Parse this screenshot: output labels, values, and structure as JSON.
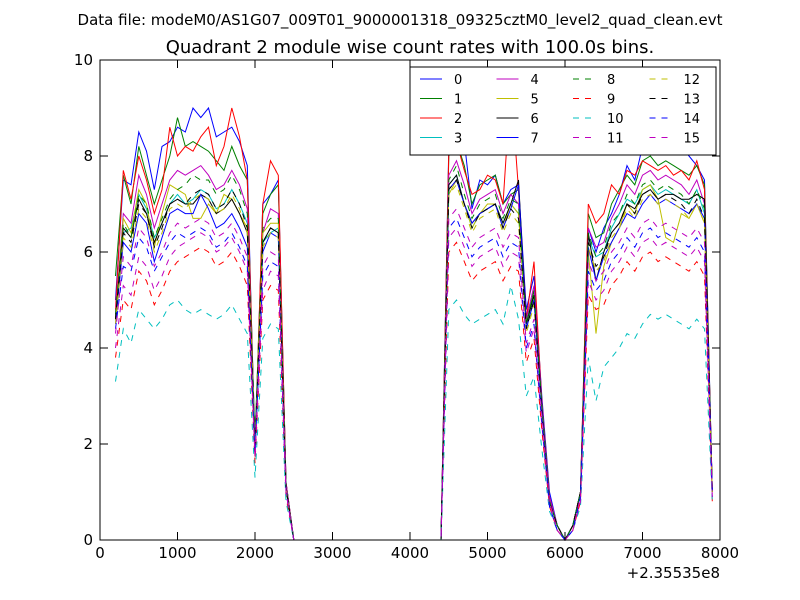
{
  "chart_data": {
    "type": "line",
    "suptitle": "Data file: modeM0/AS1G07_009T01_9000001318_09325cztM0_level2_quad_clean.evt",
    "title": "Quadrant 2 module wise count rates with 100.0s bins.",
    "xlabel": "",
    "ylabel": "",
    "x_offset_label": "+2.35535e8",
    "xlim": [
      0,
      8000
    ],
    "ylim": [
      0,
      10
    ],
    "xticks": [
      0,
      1000,
      2000,
      3000,
      4000,
      5000,
      6000,
      7000,
      8000
    ],
    "yticks": [
      0,
      2,
      4,
      6,
      8,
      10
    ],
    "grid": false,
    "legend_position": "top-right",
    "legend_columns": 4,
    "x": [
      200,
      300,
      400,
      500,
      600,
      700,
      800,
      900,
      1000,
      1100,
      1200,
      1300,
      1400,
      1500,
      1600,
      1700,
      1800,
      1900,
      2000,
      2100,
      2200,
      2300,
      2400,
      2500,
      2600,
      4400,
      4500,
      4600,
      4700,
      4800,
      4900,
      5000,
      5100,
      5200,
      5300,
      5400,
      5500,
      5600,
      5700,
      5800,
      5900,
      6000,
      6100,
      6200,
      6300,
      6400,
      6500,
      6600,
      6700,
      6800,
      6900,
      7000,
      7100,
      7200,
      7300,
      7400,
      7500,
      7600,
      7700,
      7800,
      7900
    ],
    "series": [
      {
        "name": "0",
        "color": "#0000ff",
        "dash": "solid",
        "values": [
          5.0,
          7.5,
          7.4,
          8.5,
          8.1,
          7.3,
          8.2,
          8.3,
          8.6,
          8.5,
          9.0,
          8.8,
          9.0,
          8.4,
          8.5,
          8.6,
          8.3,
          7.8,
          1.8,
          7.0,
          7.2,
          7.5,
          1.2,
          0,
          0,
          0,
          8.2,
          8.6,
          8.3,
          6.9,
          7.5,
          7.4,
          7.6,
          7.0,
          7.3,
          7.4,
          4.8,
          5.5,
          3.0,
          1.0,
          0.3,
          0,
          0.3,
          1.0,
          6.5,
          6.0,
          6.5,
          6.8,
          7.2,
          7.8,
          7.5,
          8.2,
          8.7,
          8.5,
          8.4,
          8.5,
          8.2,
          8.0,
          7.8,
          7.5,
          1.0
        ]
      },
      {
        "name": "1",
        "color": "#008000",
        "dash": "solid",
        "values": [
          5.5,
          7.6,
          7.0,
          8.2,
          7.6,
          7.0,
          7.5,
          8.0,
          8.8,
          8.2,
          8.3,
          8.2,
          8.1,
          7.9,
          7.7,
          8.2,
          7.8,
          7.5,
          2.0,
          6.8,
          7.2,
          7.4,
          1.2,
          0,
          0,
          0,
          8.0,
          8.3,
          7.8,
          7.0,
          7.4,
          7.5,
          7.6,
          7.0,
          7.2,
          7.3,
          4.5,
          5.2,
          2.9,
          0.9,
          0.3,
          0,
          0.3,
          1.0,
          6.8,
          6.3,
          6.4,
          7.0,
          7.3,
          7.6,
          7.4,
          7.9,
          8.0,
          7.8,
          7.9,
          7.8,
          7.7,
          7.6,
          7.8,
          7.4,
          1.0
        ]
      },
      {
        "name": "2",
        "color": "#ff0000",
        "dash": "solid",
        "values": [
          4.8,
          7.7,
          7.1,
          8.0,
          7.5,
          6.8,
          7.3,
          8.6,
          8.0,
          8.2,
          8.1,
          8.4,
          8.6,
          7.8,
          8.2,
          9.0,
          8.4,
          7.5,
          1.9,
          7.0,
          7.9,
          7.6,
          1.2,
          0,
          0,
          0,
          8.1,
          8.3,
          7.7,
          7.2,
          7.3,
          7.6,
          7.5,
          7.0,
          9.5,
          7.3,
          4.6,
          5.8,
          2.9,
          0.9,
          0.3,
          0,
          0.3,
          1.0,
          7.0,
          6.6,
          6.8,
          7.4,
          7.2,
          7.7,
          7.6,
          7.9,
          7.8,
          7.7,
          7.8,
          7.6,
          7.7,
          7.5,
          7.9,
          7.3,
          1.0
        ]
      },
      {
        "name": "3",
        "color": "#00bfbf",
        "dash": "solid",
        "values": [
          4.6,
          6.4,
          6.5,
          7.2,
          6.9,
          6.3,
          6.6,
          7.0,
          7.2,
          7.0,
          7.1,
          7.3,
          7.2,
          6.9,
          7.0,
          7.3,
          7.0,
          6.6,
          2.2,
          6.2,
          6.4,
          6.5,
          1.1,
          0,
          0,
          0,
          7.4,
          7.6,
          7.0,
          6.5,
          6.8,
          6.9,
          7.0,
          6.6,
          7.0,
          6.8,
          4.4,
          5.0,
          2.8,
          0.8,
          0.3,
          0,
          0.3,
          1.0,
          6.3,
          5.9,
          6.0,
          6.5,
          6.8,
          7.1,
          7.0,
          7.3,
          7.4,
          7.2,
          7.3,
          7.2,
          7.1,
          7.0,
          7.3,
          6.8,
          1.0
        ]
      },
      {
        "name": "4",
        "color": "#bf00bf",
        "dash": "solid",
        "values": [
          4.7,
          6.8,
          6.6,
          7.6,
          7.2,
          6.5,
          7.0,
          7.5,
          7.7,
          7.6,
          7.7,
          7.8,
          7.6,
          7.3,
          7.4,
          7.7,
          7.4,
          6.9,
          2.0,
          6.4,
          6.9,
          6.8,
          1.2,
          0,
          0,
          0,
          7.6,
          7.9,
          7.4,
          6.8,
          7.1,
          7.2,
          7.3,
          6.8,
          7.2,
          7.0,
          4.6,
          5.3,
          2.9,
          0.9,
          0.3,
          0,
          0.3,
          1.0,
          6.5,
          6.1,
          6.2,
          6.7,
          7.0,
          7.4,
          7.2,
          7.6,
          7.7,
          7.5,
          7.6,
          7.5,
          7.4,
          7.2,
          7.5,
          7.0,
          1.0
        ]
      },
      {
        "name": "5",
        "color": "#bfbf00",
        "dash": "solid",
        "values": [
          4.6,
          6.7,
          6.4,
          7.3,
          7.0,
          6.1,
          6.8,
          7.4,
          7.3,
          7.2,
          6.7,
          6.7,
          7.0,
          6.8,
          7.2,
          7.1,
          6.8,
          6.5,
          2.1,
          6.4,
          6.6,
          6.6,
          1.1,
          0,
          0,
          0,
          7.2,
          7.5,
          7.0,
          6.5,
          6.8,
          7.0,
          7.0,
          6.5,
          7.0,
          6.8,
          4.4,
          5.0,
          2.8,
          0.8,
          0.3,
          0,
          0.3,
          1.0,
          6.0,
          4.3,
          5.7,
          6.2,
          6.5,
          7.0,
          6.8,
          7.3,
          7.4,
          7.1,
          6.3,
          6.2,
          6.8,
          6.7,
          7.0,
          6.6,
          1.0
        ]
      },
      {
        "name": "6",
        "color": "#000000",
        "dash": "solid",
        "values": [
          4.6,
          6.5,
          6.3,
          7.1,
          6.8,
          6.2,
          6.6,
          7.0,
          7.1,
          7.0,
          7.0,
          7.2,
          7.1,
          6.8,
          6.9,
          7.1,
          6.8,
          6.4,
          2.0,
          6.2,
          6.5,
          6.4,
          1.1,
          0,
          0,
          0,
          7.4,
          7.6,
          7.0,
          6.6,
          6.8,
          6.9,
          7.0,
          6.6,
          7.0,
          7.5,
          4.5,
          5.1,
          2.8,
          0.8,
          0.3,
          0,
          0.3,
          1.0,
          6.4,
          5.4,
          6.0,
          6.4,
          6.6,
          7.0,
          6.9,
          7.2,
          7.3,
          7.1,
          7.2,
          7.2,
          7.1,
          7.1,
          7.2,
          7.1,
          1.0
        ]
      },
      {
        "name": "7",
        "color": "#0000ff",
        "dash": "solid",
        "values": [
          4.5,
          6.2,
          6.0,
          6.8,
          6.6,
          5.8,
          6.3,
          6.8,
          6.9,
          6.8,
          6.8,
          7.2,
          6.9,
          6.5,
          6.6,
          6.8,
          6.5,
          6.1,
          2.0,
          6.0,
          6.4,
          6.3,
          1.1,
          0,
          0,
          0,
          7.3,
          7.5,
          7.0,
          6.6,
          6.8,
          6.9,
          7.0,
          6.5,
          6.9,
          7.4,
          4.4,
          5.0,
          2.8,
          0.8,
          0.3,
          0,
          0.3,
          1.0,
          6.1,
          5.4,
          5.9,
          6.2,
          6.5,
          6.8,
          6.7,
          7.0,
          7.2,
          7.0,
          7.1,
          7.0,
          6.9,
          6.8,
          7.0,
          6.7,
          1.0
        ]
      },
      {
        "name": "8",
        "color": "#008000",
        "dash": "dashed",
        "values": [
          4.7,
          6.6,
          6.3,
          7.2,
          7.0,
          6.3,
          6.7,
          7.1,
          7.3,
          7.4,
          7.6,
          7.5,
          7.5,
          7.2,
          7.3,
          7.6,
          7.3,
          6.8,
          2.0,
          6.5,
          6.7,
          6.7,
          1.1,
          0,
          0,
          0,
          7.5,
          7.8,
          7.2,
          6.7,
          7.0,
          7.1,
          7.2,
          6.7,
          7.1,
          7.0,
          4.5,
          5.2,
          2.8,
          0.8,
          0.3,
          0,
          0.3,
          1.0,
          6.4,
          5.9,
          6.1,
          6.6,
          6.8,
          7.2,
          7.0,
          7.4,
          7.5,
          7.3,
          7.4,
          7.3,
          7.2,
          7.0,
          7.3,
          6.9,
          1.0
        ]
      },
      {
        "name": "9",
        "color": "#ff0000",
        "dash": "dashed",
        "values": [
          3.8,
          5.0,
          4.8,
          5.6,
          5.4,
          4.9,
          5.2,
          5.6,
          5.8,
          5.9,
          6.0,
          6.1,
          6.0,
          5.7,
          5.8,
          6.0,
          5.7,
          5.3,
          1.6,
          5.0,
          5.3,
          5.2,
          0.9,
          0,
          0,
          0,
          6.0,
          6.2,
          5.8,
          5.4,
          5.6,
          5.7,
          5.8,
          5.4,
          5.7,
          5.6,
          3.7,
          4.2,
          2.3,
          0.7,
          0.2,
          0,
          0.2,
          0.8,
          5.1,
          4.8,
          4.9,
          5.3,
          5.5,
          5.8,
          5.6,
          5.9,
          6.0,
          5.8,
          5.9,
          5.8,
          5.7,
          5.6,
          5.8,
          5.5,
          0.8
        ]
      },
      {
        "name": "10",
        "color": "#00bfbf",
        "dash": "dashed",
        "values": [
          3.3,
          4.4,
          4.1,
          4.8,
          4.6,
          4.4,
          4.6,
          4.9,
          5.0,
          4.8,
          4.7,
          4.8,
          4.7,
          4.6,
          4.7,
          4.9,
          4.6,
          4.3,
          1.3,
          4.2,
          4.5,
          4.4,
          0.8,
          0,
          0,
          0,
          4.8,
          5.0,
          4.7,
          4.5,
          4.6,
          4.7,
          4.8,
          4.5,
          5.3,
          4.6,
          3.0,
          3.4,
          1.9,
          0.6,
          0.2,
          0,
          0.2,
          0.7,
          3.8,
          2.9,
          3.6,
          3.8,
          4.0,
          4.3,
          4.2,
          4.5,
          4.7,
          4.6,
          4.7,
          4.6,
          4.5,
          4.4,
          4.6,
          4.4,
          0.8
        ]
      },
      {
        "name": "11",
        "color": "#bf00bf",
        "dash": "dashed",
        "values": [
          4.0,
          5.3,
          5.1,
          5.9,
          5.7,
          5.2,
          5.5,
          5.9,
          6.1,
          6.2,
          6.3,
          6.4,
          6.3,
          6.0,
          6.1,
          6.3,
          6.0,
          5.6,
          1.7,
          5.2,
          5.6,
          5.5,
          1.0,
          0,
          0,
          0,
          6.3,
          6.5,
          6.1,
          5.7,
          5.9,
          6.0,
          6.1,
          5.7,
          6.0,
          5.9,
          3.9,
          4.4,
          2.4,
          0.7,
          0.2,
          0,
          0.2,
          0.8,
          5.4,
          5.0,
          5.2,
          5.6,
          5.8,
          6.1,
          5.9,
          6.2,
          6.3,
          6.1,
          6.2,
          6.1,
          6.0,
          5.9,
          6.1,
          5.8,
          0.9
        ]
      },
      {
        "name": "12",
        "color": "#bfbf00",
        "dash": "dashed",
        "values": [
          4.5,
          6.3,
          6.1,
          6.9,
          6.7,
          6.0,
          6.4,
          6.9,
          7.0,
          6.9,
          7.1,
          7.2,
          7.1,
          6.8,
          6.9,
          7.2,
          6.9,
          6.4,
          1.9,
          6.1,
          6.4,
          6.3,
          1.1,
          0,
          0,
          0,
          7.2,
          7.4,
          6.9,
          6.4,
          6.7,
          6.8,
          6.9,
          6.4,
          6.8,
          6.6,
          4.3,
          4.9,
          2.7,
          0.8,
          0.3,
          0,
          0.3,
          1.0,
          6.1,
          5.6,
          5.8,
          6.3,
          6.5,
          6.9,
          6.7,
          7.1,
          7.2,
          7.0,
          7.1,
          7.0,
          6.9,
          6.7,
          7.0,
          6.6,
          1.0
        ]
      },
      {
        "name": "13",
        "color": "#000000",
        "dash": "dashed",
        "values": [
          4.6,
          6.4,
          6.2,
          7.0,
          6.8,
          6.1,
          6.5,
          7.0,
          7.1,
          7.0,
          7.2,
          7.3,
          7.2,
          6.9,
          7.0,
          7.3,
          7.0,
          6.5,
          1.9,
          6.2,
          6.5,
          6.4,
          1.1,
          0,
          0,
          0,
          7.3,
          7.5,
          7.0,
          6.5,
          6.8,
          6.9,
          7.0,
          6.5,
          6.9,
          6.7,
          4.4,
          5.0,
          2.7,
          0.8,
          0.3,
          0,
          0.3,
          1.0,
          6.2,
          5.7,
          5.9,
          6.4,
          6.6,
          7.0,
          6.8,
          7.2,
          7.3,
          7.1,
          7.2,
          7.1,
          7.0,
          6.8,
          7.1,
          6.7,
          1.0
        ]
      },
      {
        "name": "14",
        "color": "#0000ff",
        "dash": "dashed",
        "values": [
          4.4,
          5.7,
          5.6,
          6.3,
          6.1,
          5.6,
          5.9,
          6.2,
          6.4,
          6.3,
          6.4,
          6.5,
          6.4,
          6.1,
          6.2,
          6.4,
          6.1,
          5.7,
          1.8,
          5.5,
          5.8,
          5.7,
          1.0,
          0,
          0,
          0,
          6.5,
          6.7,
          6.3,
          5.9,
          6.1,
          6.2,
          6.3,
          5.9,
          6.2,
          6.1,
          4.0,
          4.5,
          2.5,
          0.7,
          0.2,
          0,
          0.2,
          0.9,
          5.6,
          5.2,
          5.4,
          5.8,
          6.0,
          6.3,
          6.1,
          6.4,
          6.5,
          6.3,
          6.4,
          6.3,
          6.2,
          6.1,
          6.3,
          6.0,
          0.9
        ]
      },
      {
        "name": "15",
        "color": "#bf00bf",
        "dash": "dashed",
        "values": [
          4.3,
          5.9,
          5.7,
          6.5,
          6.3,
          5.7,
          6.0,
          6.4,
          6.6,
          6.5,
          6.6,
          6.7,
          6.6,
          6.3,
          6.4,
          6.6,
          6.3,
          5.9,
          1.8,
          5.7,
          6.0,
          5.9,
          1.0,
          0,
          0,
          0,
          6.7,
          6.9,
          6.5,
          6.1,
          6.3,
          6.4,
          6.5,
          6.1,
          6.4,
          6.3,
          4.1,
          4.6,
          2.6,
          0.8,
          0.2,
          0,
          0.2,
          0.9,
          5.8,
          5.4,
          5.6,
          6.0,
          6.2,
          6.5,
          6.3,
          6.6,
          6.7,
          6.5,
          6.6,
          6.5,
          6.4,
          6.3,
          6.5,
          6.2,
          0.9
        ]
      }
    ]
  }
}
